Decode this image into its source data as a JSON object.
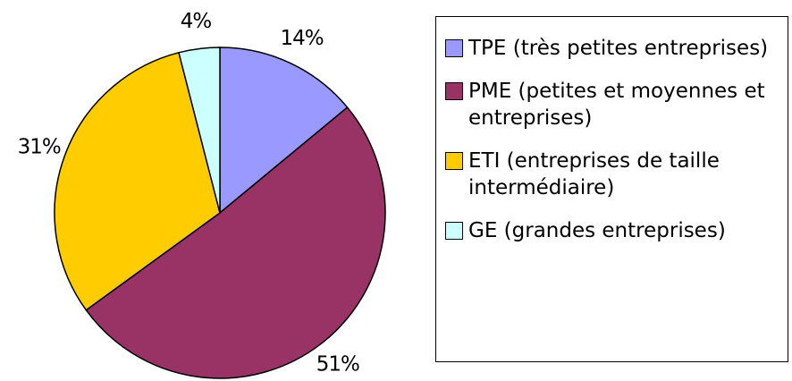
{
  "chart_data": {
    "type": "pie",
    "categories": [
      "TPE (très petites entreprises)",
      "PME (petites et moyennes et entreprises)",
      "ETI (entreprises de taille intermédiaire)",
      "GE (grandes entreprises)"
    ],
    "values": [
      14,
      51,
      31,
      4
    ],
    "value_labels": [
      "14%",
      "51%",
      "31%",
      "4%"
    ],
    "colors": [
      "#9999ff",
      "#993366",
      "#ffcc00",
      "#ccffff"
    ],
    "legend": "right"
  }
}
